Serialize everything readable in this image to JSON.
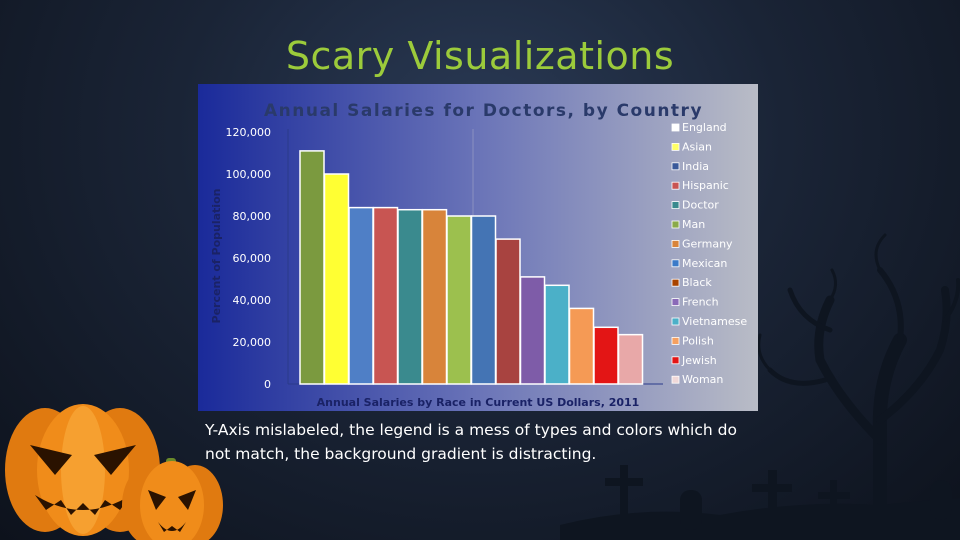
{
  "slide": {
    "title": "Scary Visualizations",
    "caption": "Y-Axis mislabeled, the legend is a mess of types and colors which do not match, the background gradient is distracting."
  },
  "colors": {
    "title": "#9ccb3b",
    "chart_bg_left": "#1a2a9a",
    "chart_bg_right": "#b9bcc6"
  },
  "chart_data": {
    "type": "bar",
    "title": "Annual Salaries for Doctors, by Country",
    "xlabel": "Annual Salaries by Race in Current US Dollars, 2011",
    "ylabel": "Percent of Population",
    "ylim": [
      0,
      120000
    ],
    "yticks": [
      "0",
      "20,000",
      "40,000",
      "60,000",
      "80,000",
      "100,000",
      "120,000"
    ],
    "grid": false,
    "legend_position": "right",
    "categories": [
      "England",
      "Asian",
      "India",
      "Hispanic",
      "Doctor",
      "Man",
      "Germany",
      "Mexican",
      "Black",
      "French",
      "Vietnamese",
      "Polish",
      "Jewish",
      "Woman"
    ],
    "values": [
      111000,
      100000,
      84000,
      84000,
      83000,
      83000,
      80000,
      80000,
      69000,
      51000,
      47000,
      36000,
      27000,
      23500
    ],
    "bar_colors": [
      "#7b9a3f",
      "#ffff33",
      "#4f7fc6",
      "#c85552",
      "#3a8a8e",
      "#d8843a",
      "#9cc04e",
      "#4474b4",
      "#a84340",
      "#7e5ca8",
      "#4bb0c8",
      "#f59a55",
      "#e31515",
      "#e8a8a8"
    ],
    "legend_colors": [
      "#ffffff",
      "#ffff66",
      "#3a5a9a",
      "#c85552",
      "#3a8a8e",
      "#8aaa4a",
      "#d8843a",
      "#3a7ac8",
      "#a84300",
      "#8a6ab8",
      "#4bb0c8",
      "#f5a060",
      "#e31515",
      "#f0d8d8"
    ]
  }
}
